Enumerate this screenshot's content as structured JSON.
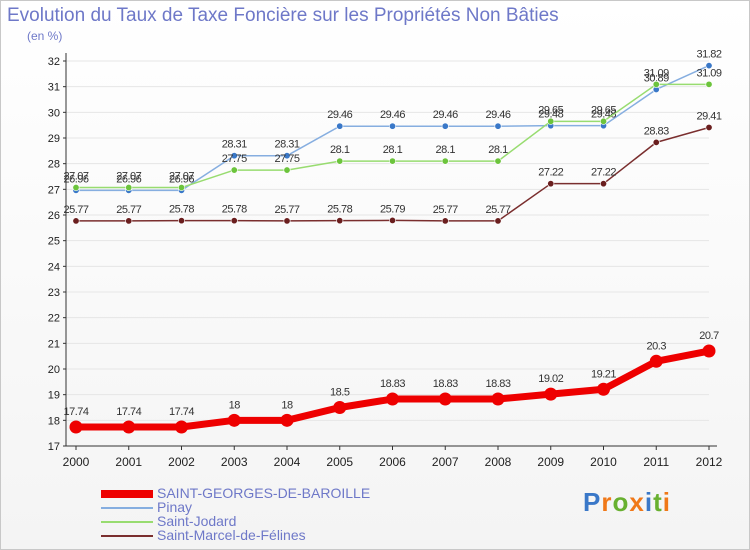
{
  "title": "Evolution du Taux de Taxe Foncière sur les Propriétés Non Bâties",
  "subtitle": "(en %)",
  "logo": {
    "text": "Proxiti"
  },
  "colors": {
    "axis": "#333333",
    "grid": "#e6e6e6",
    "tick_label": "#222222",
    "value_label": "#333333"
  },
  "chart_data": {
    "type": "line",
    "title": "Evolution du Taux de Taxe Foncière sur les Propriétés Non Bâties",
    "ylabel": "(en %)",
    "xlabel": "",
    "ylim": [
      17,
      32
    ],
    "yticks": [
      17,
      18,
      19,
      20,
      21,
      22,
      23,
      24,
      25,
      26,
      27,
      28,
      29,
      30,
      31,
      32
    ],
    "categories": [
      "2000",
      "2001",
      "2002",
      "2003",
      "2004",
      "2005",
      "2006",
      "2007",
      "2008",
      "2009",
      "2010",
      "2011",
      "2012"
    ],
    "grid": true,
    "legend_position": "bottom-left",
    "series": [
      {
        "name": "SAINT-GEORGES-DE-BAROILLE",
        "color": "#ee0000",
        "marker_color": "#ee0000",
        "width": 7,
        "values": [
          17.74,
          17.74,
          17.74,
          18,
          18,
          18.5,
          18.83,
          18.83,
          18.83,
          19.02,
          19.21,
          20.3,
          20.7
        ],
        "labels": [
          "17.74",
          "17.74",
          "17.74",
          "18",
          "18",
          "18.5",
          "18.83",
          "18.83",
          "18.83",
          "19.02",
          "19.21",
          "20.3",
          "20.7"
        ]
      },
      {
        "name": "Pinay",
        "color": "#86aee0",
        "marker_color": "#3a78c8",
        "width": 1.5,
        "values": [
          26.96,
          26.96,
          26.96,
          28.31,
          28.31,
          29.46,
          29.46,
          29.46,
          29.46,
          29.48,
          29.48,
          30.89,
          31.82
        ],
        "labels": [
          "26.96",
          "26.96",
          "26.96",
          "28.31",
          "28.31",
          "29.46",
          "29.46",
          "29.46",
          "29.46",
          "29.48",
          "29.48",
          "30.89",
          "31.82"
        ]
      },
      {
        "name": "Saint-Jodard",
        "color": "#98dc70",
        "marker_color": "#6cc43c",
        "width": 1.5,
        "values": [
          27.07,
          27.07,
          27.07,
          27.75,
          27.75,
          28.1,
          28.1,
          28.1,
          28.1,
          29.65,
          29.65,
          31.09,
          31.09
        ],
        "labels": [
          "27.07",
          "27.07",
          "27.07",
          "27.75",
          "27.75",
          "28.1",
          "28.1",
          "28.1",
          "28.1",
          "29.65",
          "29.65",
          "31.09",
          "31.09"
        ]
      },
      {
        "name": "Saint-Marcel-de-Félines",
        "color": "#7a2e2e",
        "marker_color": "#6a1e1e",
        "width": 1.5,
        "values": [
          25.77,
          25.77,
          25.78,
          25.78,
          25.77,
          25.78,
          25.79,
          25.77,
          25.77,
          27.22,
          27.22,
          28.83,
          29.41
        ],
        "labels": [
          "25.77",
          "25.77",
          "25.78",
          "25.78",
          "25.77",
          "25.78",
          "25.79",
          "25.77",
          "25.77",
          "27.22",
          "27.22",
          "28.83",
          "29.41"
        ]
      }
    ]
  }
}
